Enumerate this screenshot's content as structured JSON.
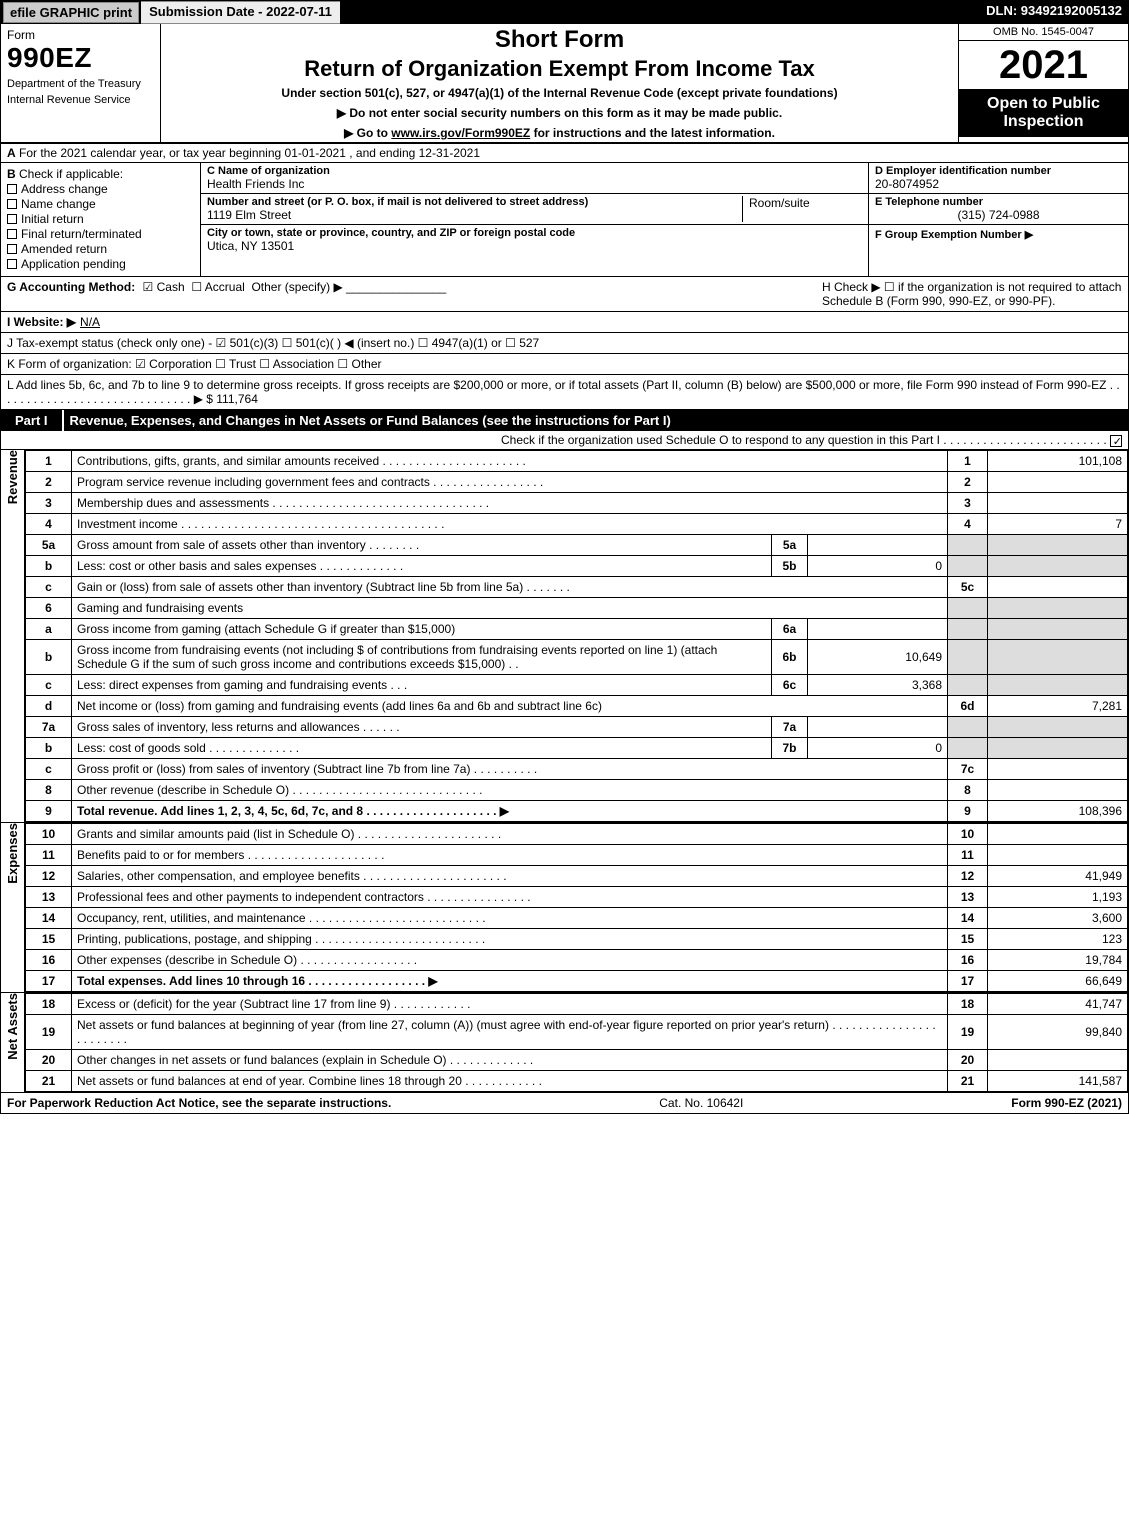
{
  "topbar": {
    "efile": "efile GRAPHIC print",
    "subdate_label": "Submission Date - 2022-07-11",
    "dln": "DLN: 93492192005132"
  },
  "header": {
    "form_word": "Form",
    "form_no": "990EZ",
    "dept1": "Department of the Treasury",
    "dept2": "Internal Revenue Service",
    "short_form": "Short Form",
    "return_of": "Return of Organization Exempt From Income Tax",
    "under_section": "Under section 501(c), 527, or 4947(a)(1) of the Internal Revenue Code (except private foundations)",
    "ssn_line": "▶ Do not enter social security numbers on this form as it may be made public.",
    "goto_line_prefix": "▶ Go to ",
    "goto_link": "www.irs.gov/Form990EZ",
    "goto_line_suffix": " for instructions and the latest information.",
    "omb": "OMB No. 1545-0047",
    "year": "2021",
    "open_to": "Open to Public Inspection"
  },
  "section_a": {
    "letter": "A",
    "text": "For the 2021 calendar year, or tax year beginning 01-01-2021 , and ending 12-31-2021"
  },
  "section_b": {
    "letter": "B",
    "label": "Check if applicable:",
    "opts": [
      "Address change",
      "Name change",
      "Initial return",
      "Final return/terminated",
      "Amended return",
      "Application pending"
    ]
  },
  "entity": {
    "c_label": "C Name of organization",
    "c_name": "Health Friends Inc",
    "street_label": "Number and street (or P. O. box, if mail is not delivered to street address)",
    "street": "1119 Elm Street",
    "room_label": "Room/suite",
    "city_label": "City or town, state or province, country, and ZIP or foreign postal code",
    "city": "Utica, NY  13501",
    "d_label": "D Employer identification number",
    "d_ein": "20-8074952",
    "e_label": "E Telephone number",
    "e_phone": "(315) 724-0988",
    "f_label": "F Group Exemption Number  ▶",
    "f_val": ""
  },
  "section_g": {
    "label": "G Accounting Method:",
    "cash": "Cash",
    "accrual": "Accrual",
    "other": "Other (specify) ▶",
    "line": "_______________"
  },
  "section_h": {
    "text": "H  Check ▶  ☐  if the organization is not required to attach Schedule B (Form 990, 990-EZ, or 990-PF)."
  },
  "section_i": {
    "label": "I Website: ▶",
    "value": "N/A"
  },
  "section_j": {
    "text": "J Tax-exempt status (check only one) - ☑ 501(c)(3)  ☐ 501(c)(  ) ◀ (insert no.)  ☐ 4947(a)(1) or  ☐ 527"
  },
  "section_k": {
    "text": "K Form of organization:  ☑ Corporation   ☐ Trust   ☐ Association   ☐ Other"
  },
  "section_l": {
    "text": "L Add lines 5b, 6c, and 7b to line 9 to determine gross receipts. If gross receipts are $200,000 or more, or if total assets (Part II, column (B) below) are $500,000 or more, file Form 990 instead of Form 990-EZ . . . . . . . . . . . . . . . . . . . . . . . . . . . . . . ▶ $ 111,764"
  },
  "part1": {
    "tag": "Part I",
    "title": "Revenue, Expenses, and Changes in Net Assets or Fund Balances (see the instructions for Part I)",
    "sub": "Check if the organization used Schedule O to respond to any question in this Part I . . . . . . . . . . . . . . . . . . . . . . . . ."
  },
  "revenue_label": "Revenue",
  "expenses_label": "Expenses",
  "netassets_label": "Net Assets",
  "lines_revenue": [
    {
      "no": "1",
      "desc": "Contributions, gifts, grants, and similar amounts received . . . . . . . . . . . . . . . . . . . . . .",
      "ln": "1",
      "amt": "101,108"
    },
    {
      "no": "2",
      "desc": "Program service revenue including government fees and contracts . . . . . . . . . . . . . . . . .",
      "ln": "2",
      "amt": ""
    },
    {
      "no": "3",
      "desc": "Membership dues and assessments . . . . . . . . . . . . . . . . . . . . . . . . . . . . . . . . .",
      "ln": "3",
      "amt": ""
    },
    {
      "no": "4",
      "desc": "Investment income . . . . . . . . . . . . . . . . . . . . . . . . . . . . . . . . . . . . . . . .",
      "ln": "4",
      "amt": "7"
    },
    {
      "no": "5a",
      "desc": "Gross amount from sale of assets other than inventory . . . . . . . .",
      "iref": "5a",
      "ival": "",
      "shadeAmt": true
    },
    {
      "no": "b",
      "desc": "Less: cost or other basis and sales expenses . . . . . . . . . . . . .",
      "iref": "5b",
      "ival": "0",
      "shadeAmt": true
    },
    {
      "no": "c",
      "desc": "Gain or (loss) from sale of assets other than inventory (Subtract line 5b from line 5a) . . . . . . .",
      "ln": "5c",
      "amt": ""
    },
    {
      "no": "6",
      "desc": "Gaming and fundraising events",
      "shadeAmt": true,
      "shadeLn": true
    },
    {
      "no": "a",
      "desc": "Gross income from gaming (attach Schedule G if greater than $15,000)",
      "iref": "6a",
      "ival": "",
      "shadeAmt": true
    },
    {
      "no": "b",
      "desc": "Gross income from fundraising events (not including $                    of contributions from fundraising events reported on line 1) (attach Schedule G if the sum of such gross income and contributions exceeds $15,000)    .   .",
      "iref": "6b",
      "ival": "10,649",
      "shadeAmt": true
    },
    {
      "no": "c",
      "desc": "Less: direct expenses from gaming and fundraising events    .   .   .",
      "iref": "6c",
      "ival": "3,368",
      "shadeAmt": true
    },
    {
      "no": "d",
      "desc": "Net income or (loss) from gaming and fundraising events (add lines 6a and 6b and subtract line 6c)",
      "ln": "6d",
      "amt": "7,281"
    },
    {
      "no": "7a",
      "desc": "Gross sales of inventory, less returns and allowances . . . . . .",
      "iref": "7a",
      "ival": "",
      "shadeAmt": true
    },
    {
      "no": "b",
      "desc": "Less: cost of goods sold        .   .   .   .   .   .   .   .   .   .   .   .   .   .",
      "iref": "7b",
      "ival": "0",
      "shadeAmt": true
    },
    {
      "no": "c",
      "desc": "Gross profit or (loss) from sales of inventory (Subtract line 7b from line 7a) . . . . . . . . . .",
      "ln": "7c",
      "amt": ""
    },
    {
      "no": "8",
      "desc": "Other revenue (describe in Schedule O) . . . . . . . . . . . . . . . . . . . . . . . . . . . . .",
      "ln": "8",
      "amt": ""
    },
    {
      "no": "9",
      "desc": "Total revenue. Add lines 1, 2, 3, 4, 5c, 6d, 7c, and 8 . . . . . . . . . . . . . . . . . . . .     ▶",
      "ln": "9",
      "amt": "108,396",
      "bold": true
    }
  ],
  "lines_expenses": [
    {
      "no": "10",
      "desc": "Grants and similar amounts paid (list in Schedule O) . . . . . . . . . . . . . . . . . . . . . .",
      "ln": "10",
      "amt": ""
    },
    {
      "no": "11",
      "desc": "Benefits paid to or for members       .   .   .   .   .   .   .   .   .   .   .   .   .   .   .   .   .   .   .   .   .",
      "ln": "11",
      "amt": ""
    },
    {
      "no": "12",
      "desc": "Salaries, other compensation, and employee benefits . . . . . . . . . . . . . . . . . . . . . .",
      "ln": "12",
      "amt": "41,949"
    },
    {
      "no": "13",
      "desc": "Professional fees and other payments to independent contractors . . . . . . . . . . . . . . . .",
      "ln": "13",
      "amt": "1,193"
    },
    {
      "no": "14",
      "desc": "Occupancy, rent, utilities, and maintenance . . . . . . . . . . . . . . . . . . . . . . . . . . .",
      "ln": "14",
      "amt": "3,600"
    },
    {
      "no": "15",
      "desc": "Printing, publications, postage, and shipping . . . . . . . . . . . . . . . . . . . . . . . . . .",
      "ln": "15",
      "amt": "123"
    },
    {
      "no": "16",
      "desc": "Other expenses (describe in Schedule O)     .   .   .   .   .   .   .   .   .   .   .   .   .   .   .   .   .   .",
      "ln": "16",
      "amt": "19,784"
    },
    {
      "no": "17",
      "desc": "Total expenses. Add lines 10 through 16     .   .   .   .   .   .   .   .   .   .   .   .   .   .   .   .   .   .   ▶",
      "ln": "17",
      "amt": "66,649",
      "bold": true
    }
  ],
  "lines_netassets": [
    {
      "no": "18",
      "desc": "Excess or (deficit) for the year (Subtract line 17 from line 9)         .   .   .   .   .   .   .   .   .   .   .   .",
      "ln": "18",
      "amt": "41,747"
    },
    {
      "no": "19",
      "desc": "Net assets or fund balances at beginning of year (from line 27, column (A)) (must agree with end-of-year figure reported on prior year's return) . . . . . . . . . . . . . . . . . . . . . . . .",
      "ln": "19",
      "amt": "99,840"
    },
    {
      "no": "20",
      "desc": "Other changes in net assets or fund balances (explain in Schedule O) . . . . . . . . . . . . .",
      "ln": "20",
      "amt": ""
    },
    {
      "no": "21",
      "desc": "Net assets or fund balances at end of year. Combine lines 18 through 20 . . . . . . . . . . . .",
      "ln": "21",
      "amt": "141,587"
    }
  ],
  "footer": {
    "left": "For Paperwork Reduction Act Notice, see the separate instructions.",
    "mid": "Cat. No. 10642I",
    "right": "Form 990-EZ (2021)"
  },
  "colors": {
    "black": "#000000",
    "white": "#ffffff",
    "shade": "#dddddd",
    "btn_bg": "#cccccc"
  }
}
